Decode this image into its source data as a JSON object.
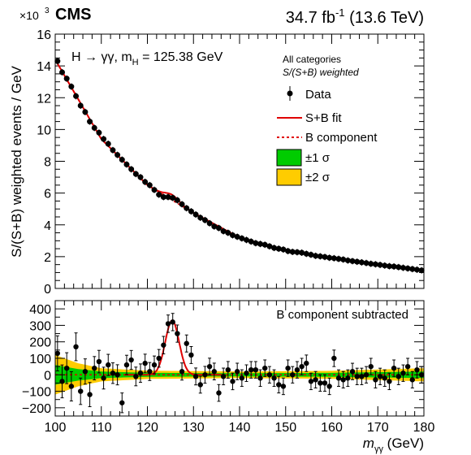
{
  "header": {
    "experiment": "CMS",
    "lumi_value": "34.7 fb",
    "lumi_exp": "-1",
    "energy": " (13.6 TeV)"
  },
  "upper_panel": {
    "exponent_prefix": "×10",
    "exponent_power": "3",
    "ylabel": "S/(S+B) weighted events / GeV",
    "process_label": "H → γγ, m",
    "process_sub": "H",
    "process_value": " = 125.38 GeV",
    "category_line1": "All categories",
    "category_line2": "S/(S+B) weighted",
    "legend": {
      "data": "Data",
      "fit": "S+B fit",
      "bkg": "B component",
      "band1": "±1 σ",
      "band2": "±2 σ"
    }
  },
  "lower_panel": {
    "title": "B component subtracted"
  },
  "xaxis": {
    "label_main": "m",
    "label_sub": "γγ",
    "label_unit": " (GeV)"
  },
  "colors": {
    "fit": "#e00000",
    "band1": "#00cc00",
    "band2": "#ffcc00",
    "data": "#000000"
  },
  "chart_data": [
    {
      "type": "scatter",
      "panel": "upper",
      "x": [
        100.5,
        101.5,
        102.5,
        103.5,
        104.5,
        105.5,
        106.5,
        107.5,
        108.5,
        109.5,
        110.5,
        111.5,
        112.5,
        113.5,
        114.5,
        115.5,
        116.5,
        117.5,
        118.5,
        119.5,
        120.5,
        121.5,
        122.5,
        123.5,
        124.5,
        125.5,
        126.5,
        127.5,
        128.5,
        129.5,
        130.5,
        131.5,
        132.5,
        133.5,
        134.5,
        135.5,
        136.5,
        137.5,
        138.5,
        139.5,
        140.5,
        141.5,
        142.5,
        143.5,
        144.5,
        145.5,
        146.5,
        147.5,
        148.5,
        149.5,
        150.5,
        151.5,
        152.5,
        153.5,
        154.5,
        155.5,
        156.5,
        157.5,
        158.5,
        159.5,
        160.5,
        161.5,
        162.5,
        163.5,
        164.5,
        165.5,
        166.5,
        167.5,
        168.5,
        169.5,
        170.5,
        171.5,
        172.5,
        173.5,
        174.5,
        175.5,
        176.5,
        177.5,
        178.5,
        179.5
      ],
      "y": [
        14.3,
        13.6,
        13.2,
        12.7,
        12.1,
        11.5,
        11.1,
        10.5,
        10.1,
        9.8,
        9.4,
        9.1,
        8.7,
        8.4,
        8.1,
        7.8,
        7.5,
        7.2,
        7.0,
        6.7,
        6.5,
        6.2,
        5.9,
        5.75,
        5.75,
        5.7,
        5.55,
        5.3,
        5.05,
        4.85,
        4.65,
        4.45,
        4.3,
        4.1,
        3.9,
        3.8,
        3.6,
        3.5,
        3.35,
        3.25,
        3.15,
        3.05,
        2.95,
        2.85,
        2.8,
        2.75,
        2.65,
        2.55,
        2.5,
        2.45,
        2.35,
        2.3,
        2.28,
        2.25,
        2.18,
        2.12,
        2.05,
        2.02,
        1.98,
        1.93,
        1.9,
        1.86,
        1.82,
        1.76,
        1.72,
        1.68,
        1.64,
        1.6,
        1.55,
        1.52,
        1.48,
        1.44,
        1.4,
        1.38,
        1.34,
        1.3,
        1.26,
        1.22,
        1.18,
        1.14
      ],
      "series": [
        {
          "name": "Data"
        }
      ],
      "xlim": [
        100,
        180
      ],
      "ylim": [
        0,
        16
      ],
      "y_ticks": [
        0,
        2,
        4,
        6,
        8,
        10,
        12,
        14,
        16
      ],
      "y_scale": "×10^3",
      "fit": {
        "name": "S+B fit",
        "mass": 125.38,
        "signal_peak": 330,
        "signal_sigma": 1.5
      },
      "background": {
        "name": "B component",
        "at_x": [
          100,
          110,
          120,
          130,
          140,
          150,
          160,
          170,
          180
        ],
        "y": [
          14.4,
          9.4,
          6.5,
          4.75,
          3.2,
          2.4,
          1.92,
          1.46,
          1.1
        ]
      }
    },
    {
      "type": "scatter",
      "panel": "lower",
      "title": "B component subtracted",
      "x": [
        100.5,
        101.5,
        102.5,
        103.5,
        104.5,
        105.5,
        106.5,
        107.5,
        108.5,
        109.5,
        110.5,
        111.5,
        112.5,
        113.5,
        114.5,
        115.5,
        116.5,
        117.5,
        118.5,
        119.5,
        120.5,
        121.5,
        122.5,
        123.5,
        124.5,
        125.5,
        126.5,
        127.5,
        128.5,
        129.5,
        130.5,
        131.5,
        132.5,
        133.5,
        134.5,
        135.5,
        136.5,
        137.5,
        138.5,
        139.5,
        140.5,
        141.5,
        142.5,
        143.5,
        144.5,
        145.5,
        146.5,
        147.5,
        148.5,
        149.5,
        150.5,
        151.5,
        152.5,
        153.5,
        154.5,
        155.5,
        156.5,
        157.5,
        158.5,
        159.5,
        160.5,
        161.5,
        162.5,
        163.5,
        164.5,
        165.5,
        166.5,
        167.5,
        168.5,
        169.5,
        170.5,
        171.5,
        172.5,
        173.5,
        174.5,
        175.5,
        176.5,
        177.5,
        178.5,
        179.5
      ],
      "y": [
        130,
        -40,
        40,
        -70,
        170,
        -100,
        20,
        -120,
        40,
        80,
        -20,
        60,
        10,
        0,
        -170,
        60,
        90,
        -10,
        10,
        70,
        20,
        60,
        100,
        180,
        310,
        320,
        250,
        20,
        190,
        120,
        -10,
        -60,
        0,
        50,
        20,
        -110,
        -10,
        30,
        -40,
        20,
        -20,
        10,
        30,
        30,
        -20,
        40,
        0,
        -20,
        -60,
        -70,
        40,
        0,
        30,
        50,
        70,
        -40,
        -30,
        -50,
        -50,
        -70,
        100,
        -20,
        -30,
        -20,
        20,
        -10,
        -10,
        0,
        50,
        -30,
        -10,
        -20,
        -40,
        40,
        -10,
        10,
        50,
        -30,
        30,
        0
      ],
      "fit_peak": {
        "mass": 125.38,
        "height": 330
      },
      "xlim": [
        100,
        180
      ],
      "ylim": [
        -250,
        450
      ],
      "y_ticks": [
        -200,
        -100,
        0,
        100,
        200,
        300,
        400
      ],
      "x_ticks": [
        100,
        110,
        120,
        130,
        140,
        150,
        160,
        170,
        180
      ],
      "band_1sigma": {
        "at_x": [
          100,
          105,
          110,
          120,
          140,
          160,
          180
        ],
        "half_width": [
          60,
          35,
          20,
          12,
          10,
          12,
          20
        ]
      },
      "band_2sigma": {
        "at_x": [
          100,
          105,
          110,
          120,
          140,
          160,
          180
        ],
        "half_width": [
          120,
          70,
          40,
          25,
          20,
          24,
          40
        ]
      }
    }
  ]
}
